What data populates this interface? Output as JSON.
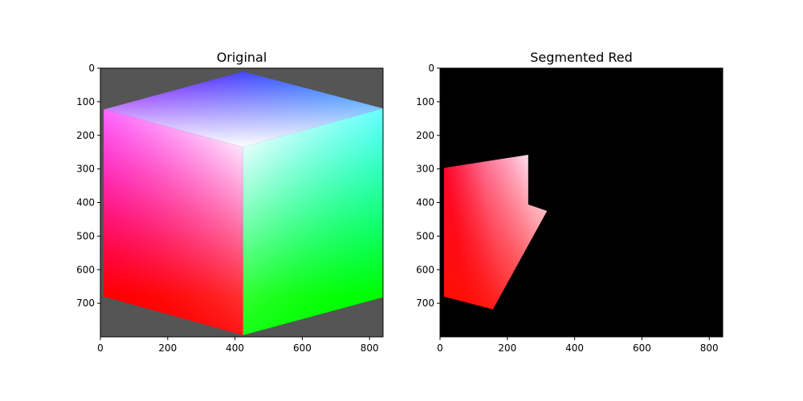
{
  "chart_data": [
    {
      "type": "image",
      "title": "Original",
      "xlim": [
        0,
        840
      ],
      "ylim": [
        800,
        0
      ],
      "x_ticks": [
        0,
        200,
        400,
        600,
        800
      ],
      "y_ticks": [
        0,
        100,
        200,
        300,
        400,
        500,
        600,
        700
      ],
      "background": "#555555",
      "cube": {
        "top": [
          424,
          10
        ],
        "upper_left": [
          10,
          123
        ],
        "upper_right": [
          840,
          120
        ],
        "center": [
          424,
          235
        ],
        "lower_left": [
          10,
          680
        ],
        "lower_right": [
          840,
          682
        ],
        "bottom": [
          424,
          795
        ],
        "colors": {
          "top": "#0000ff",
          "upper_left": "#ff00ff",
          "upper_right": "#00ffff",
          "center": "#ffffff",
          "lower_left": "#ff0000",
          "lower_right": "#00ff00",
          "bottom": "#ffff00"
        }
      }
    },
    {
      "type": "image",
      "title": "Segmented Red",
      "xlim": [
        0,
        840
      ],
      "ylim": [
        800,
        0
      ],
      "x_ticks": [
        0,
        200,
        400,
        600,
        800
      ],
      "y_ticks": [
        0,
        100,
        200,
        300,
        400,
        500,
        600,
        700
      ],
      "background": "#000000",
      "region": {
        "polygon": [
          [
            12,
            297
          ],
          [
            262,
            258
          ],
          [
            262,
            406
          ],
          [
            318,
            425
          ],
          [
            157,
            718
          ],
          [
            12,
            680
          ]
        ],
        "color_stops": [
          {
            "offset": 0,
            "color": "#ff0040"
          },
          {
            "offset": 0.45,
            "color": "#ff80b0"
          },
          {
            "offset": 1,
            "color": "#ffe0f0"
          }
        ],
        "lower_color": "#ff1000"
      }
    }
  ]
}
